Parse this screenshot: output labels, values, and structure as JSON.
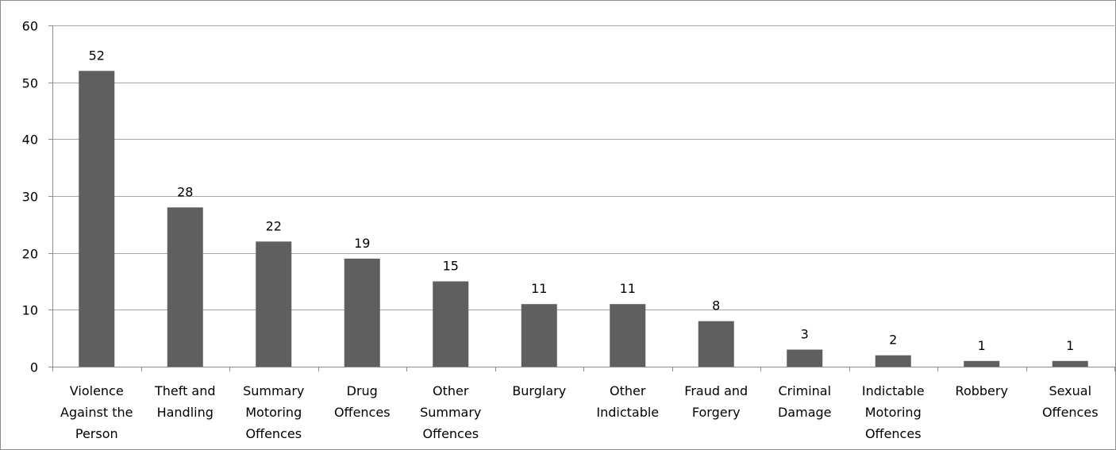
{
  "chart_data": {
    "type": "bar",
    "categories": [
      "Violence Against the Person",
      "Theft and Handling",
      "Summary Motoring Offences",
      "Drug Offences",
      "Other Summary Offences",
      "Burglary",
      "Other Indictable",
      "Fraud and Forgery",
      "Criminal Damage",
      "Indictable Motoring Offences",
      "Robbery",
      "Sexual Offences"
    ],
    "category_label_lines": [
      [
        "Violence",
        "Against the",
        "Person"
      ],
      [
        "Theft and",
        "Handling"
      ],
      [
        "Summary",
        "Motoring",
        "Offences"
      ],
      [
        "Drug",
        "Offences"
      ],
      [
        "Other",
        "Summary",
        "Offences"
      ],
      [
        "Burglary"
      ],
      [
        "Other",
        "Indictable"
      ],
      [
        "Fraud and",
        "Forgery"
      ],
      [
        "Criminal",
        "Damage"
      ],
      [
        "Indictable",
        "Motoring",
        "Offences"
      ],
      [
        "Robbery"
      ],
      [
        "Sexual",
        "Offences"
      ]
    ],
    "values": [
      52,
      28,
      22,
      19,
      15,
      11,
      11,
      8,
      3,
      2,
      1,
      1
    ],
    "yticks": [
      0,
      10,
      20,
      30,
      40,
      50,
      60
    ],
    "ylim": [
      0,
      60
    ],
    "title": "",
    "xlabel": "",
    "ylabel": "",
    "grid": true,
    "legend": "none",
    "data_labels": true,
    "colors": {
      "bar": "#5f5f5f",
      "grid": "#a6a6a6",
      "axis": "#8c8c8c",
      "frame": "#8c8c8c",
      "text": "#000000"
    }
  }
}
